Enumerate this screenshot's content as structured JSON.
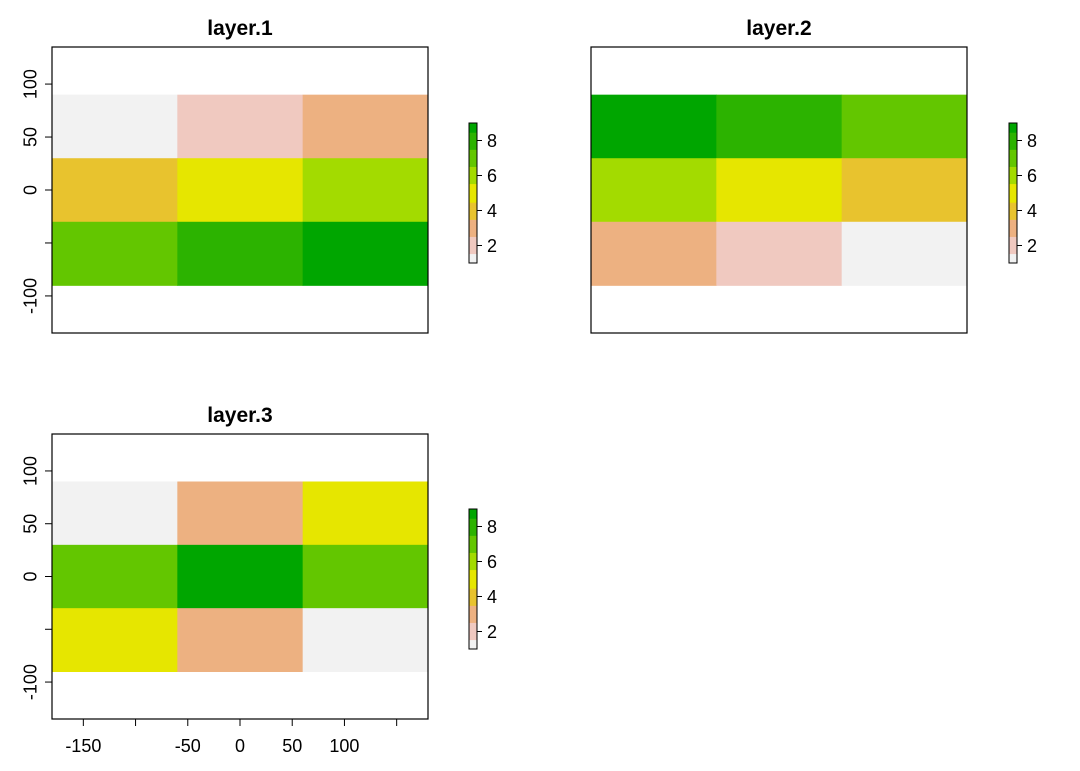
{
  "chart_data": [
    {
      "type": "heatmap",
      "title": "layer.1",
      "xlim": [
        -180,
        180
      ],
      "ylim": [
        -135,
        135
      ],
      "x_edges": [
        -180,
        -60,
        60,
        180
      ],
      "y_edges": [
        -90,
        -30,
        30,
        90
      ],
      "values": [
        [
          1,
          2,
          3
        ],
        [
          4,
          5,
          6
        ],
        [
          7,
          8,
          9
        ]
      ],
      "yticks": [
        -100,
        -50,
        0,
        50,
        100
      ],
      "ytick_labels": [
        "-100",
        "",
        "0",
        "50",
        "100"
      ],
      "show_x_axis": false,
      "legend": {
        "min": 1,
        "max": 9,
        "ticks": [
          2,
          4,
          6,
          8
        ],
        "tick_labels": [
          "2",
          "4",
          "6",
          "8"
        ]
      }
    },
    {
      "type": "heatmap",
      "title": "layer.2",
      "xlim": [
        -180,
        180
      ],
      "ylim": [
        -135,
        135
      ],
      "x_edges": [
        -180,
        -60,
        60,
        180
      ],
      "y_edges": [
        -90,
        -30,
        30,
        90
      ],
      "values": [
        [
          9,
          8,
          7
        ],
        [
          6,
          5,
          4
        ],
        [
          3,
          2,
          1
        ]
      ],
      "show_x_axis": false,
      "show_y_axis": false,
      "legend": {
        "min": 1,
        "max": 9,
        "ticks": [
          2,
          4,
          6,
          8
        ],
        "tick_labels": [
          "2",
          "4",
          "6",
          "8"
        ]
      }
    },
    {
      "type": "heatmap",
      "title": "layer.3",
      "xlim": [
        -180,
        180
      ],
      "ylim": [
        -135,
        135
      ],
      "x_edges": [
        -180,
        -60,
        60,
        180
      ],
      "y_edges": [
        -90,
        -30,
        30,
        90
      ],
      "values": [
        [
          1,
          3,
          5
        ],
        [
          7,
          9,
          7
        ],
        [
          5,
          3,
          1
        ]
      ],
      "xticks": [
        -150,
        -100,
        -50,
        0,
        50,
        100,
        150
      ],
      "xtick_labels": [
        "-150",
        "",
        "-50",
        "0",
        "50",
        "100",
        ""
      ],
      "yticks": [
        -100,
        -50,
        0,
        50,
        100
      ],
      "ytick_labels": [
        "-100",
        "",
        "0",
        "50",
        "100"
      ],
      "legend": {
        "min": 1,
        "max": 9,
        "ticks": [
          2,
          4,
          6,
          8
        ],
        "tick_labels": [
          "2",
          "4",
          "6",
          "8"
        ]
      }
    }
  ],
  "colors": {
    "palette": [
      "#F2F2F2",
      "#F0C9C0",
      "#EDB181",
      "#E8C32E",
      "#E6E600",
      "#A3DB00",
      "#63C600",
      "#2CB300",
      "#00A600"
    ],
    "nodata": "#FFFFFF",
    "frame": "#000000"
  }
}
